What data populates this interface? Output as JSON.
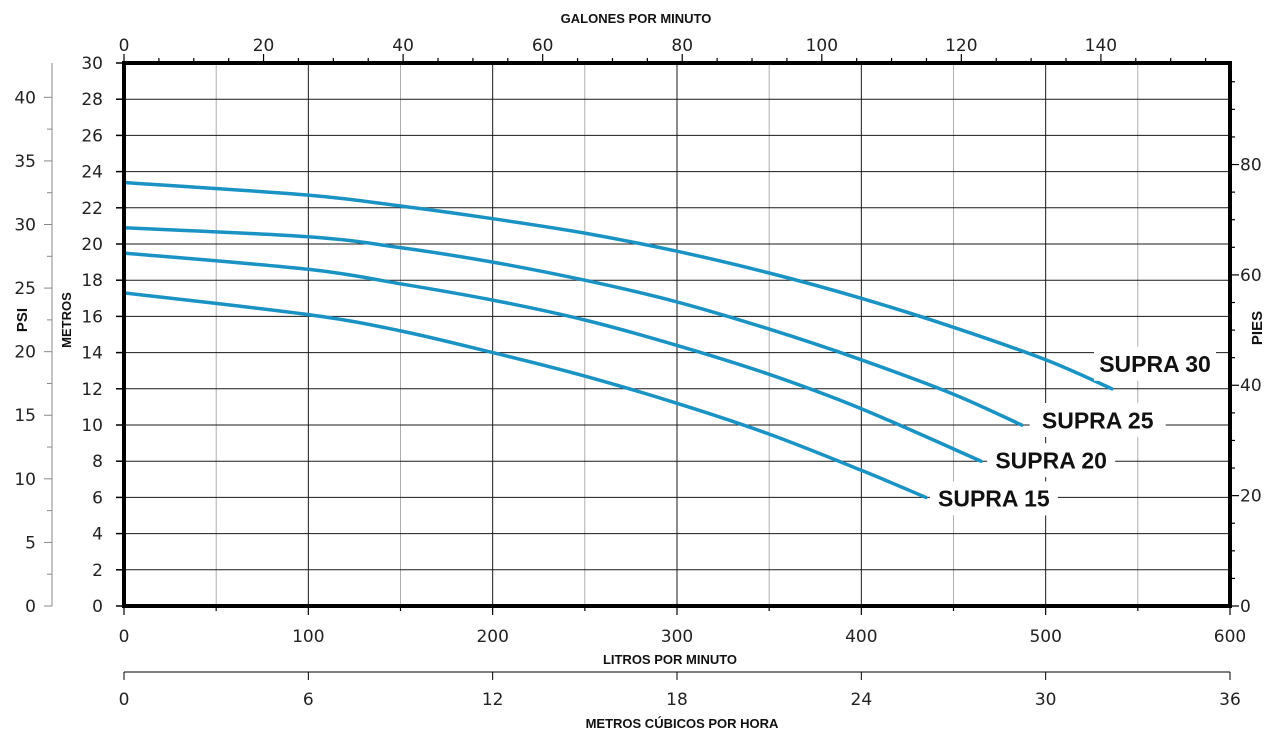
{
  "chart_data": {
    "type": "line",
    "axes": {
      "x_bottom": {
        "label": "LITROS POR MINUTO",
        "range": [
          0,
          600
        ],
        "ticks": [
          0,
          100,
          200,
          300,
          400,
          500,
          600
        ],
        "tick_labels": [
          "0",
          "100",
          "200",
          "300",
          "400",
          "500",
          "600"
        ]
      },
      "x_bottom2": {
        "label": "METROS CÚBICOS POR HORA",
        "range": [
          0,
          36
        ],
        "ticks": [
          0,
          6,
          12,
          18,
          24,
          30,
          36
        ],
        "tick_labels": [
          "0",
          "6",
          "12",
          "18",
          "24",
          "30",
          "36"
        ]
      },
      "x_top": {
        "label": "GALONES POR MINUTO",
        "range": [
          0,
          158.5
        ],
        "ticks": [
          0,
          20,
          40,
          60,
          80,
          100,
          120,
          140
        ],
        "tick_labels": [
          "0",
          "20",
          "40",
          "60",
          "80",
          "100",
          "120",
          "140"
        ]
      },
      "y_left": {
        "label": "METROS",
        "range": [
          0,
          30
        ],
        "ticks": [
          0,
          2,
          4,
          6,
          8,
          10,
          12,
          14,
          16,
          18,
          20,
          22,
          24,
          26,
          28,
          30
        ],
        "tick_labels": [
          "0",
          "2",
          "4",
          "6",
          "8",
          "10",
          "12",
          "14",
          "16",
          "18",
          "20",
          "22",
          "24",
          "26",
          "28",
          "30"
        ]
      },
      "y_left2": {
        "label": "PSI",
        "range": [
          0,
          42.7
        ],
        "ticks": [
          0,
          5,
          10,
          15,
          20,
          25,
          30,
          35,
          40
        ],
        "tick_labels": [
          "0",
          "5",
          "10",
          "15",
          "20",
          "25",
          "30",
          "35",
          "40"
        ]
      },
      "y_right": {
        "label": "PIES",
        "range": [
          0,
          98.4
        ],
        "ticks": [
          0,
          20,
          40,
          60,
          80
        ],
        "tick_labels": [
          "0",
          "20",
          "40",
          "60",
          "80"
        ]
      }
    },
    "grid": true,
    "series": [
      {
        "name": "SUPRA 30",
        "x": [
          0,
          100,
          150,
          200,
          250,
          300,
          350,
          400,
          450,
          500,
          536
        ],
        "y": [
          23.4,
          22.7,
          22.1,
          21.4,
          20.6,
          19.6,
          18.4,
          17.0,
          15.4,
          13.6,
          12.0
        ]
      },
      {
        "name": "SUPRA 25",
        "x": [
          0,
          100,
          150,
          200,
          250,
          300,
          350,
          400,
          450,
          487
        ],
        "y": [
          20.9,
          20.4,
          19.8,
          19.0,
          18.0,
          16.8,
          15.3,
          13.6,
          11.7,
          10.0
        ]
      },
      {
        "name": "SUPRA 20",
        "x": [
          0,
          100,
          150,
          200,
          250,
          300,
          350,
          400,
          465
        ],
        "y": [
          19.5,
          18.6,
          17.8,
          16.9,
          15.8,
          14.4,
          12.8,
          10.9,
          8.0
        ]
      },
      {
        "name": "SUPRA 15",
        "x": [
          0,
          100,
          150,
          200,
          250,
          300,
          350,
          400,
          435
        ],
        "y": [
          17.3,
          16.1,
          15.2,
          14.0,
          12.7,
          11.2,
          9.5,
          7.5,
          6.0
        ]
      }
    ],
    "style": {
      "line_color": "#1a93c4",
      "grid_color": "#1a1a1a",
      "minor_grid_color": "#9a9a9a",
      "frame_color": "#000000"
    }
  }
}
